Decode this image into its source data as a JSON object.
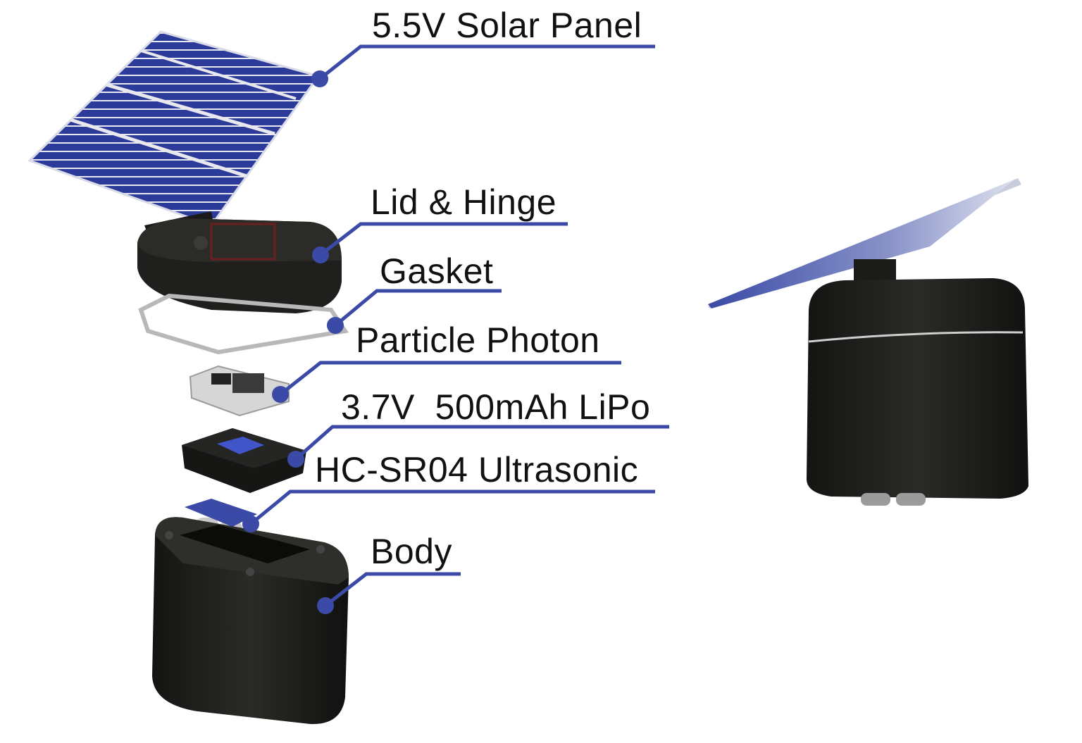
{
  "colors": {
    "leader": "#3b4aa6",
    "panel_cell": "#2f3e9e",
    "panel_line": "#e8e8ee",
    "housing": "#1c1c1a",
    "gasket": "#b8b8b8",
    "board": "#d6d6d6",
    "battery_accent": "#3f55c8",
    "background": "#ffffff"
  },
  "callouts": [
    {
      "id": "solar-panel",
      "text": "5.5V Solar Panel"
    },
    {
      "id": "lid-hinge",
      "text": "Lid & Hinge"
    },
    {
      "id": "gasket",
      "text": "Gasket"
    },
    {
      "id": "particle-photon",
      "text": "Particle Photon"
    },
    {
      "id": "lipo-battery",
      "text": "3.7V  500mAh LiPo"
    },
    {
      "id": "ultrasonic",
      "text": "HC-SR04 Ultrasonic"
    },
    {
      "id": "body",
      "text": "Body"
    }
  ]
}
